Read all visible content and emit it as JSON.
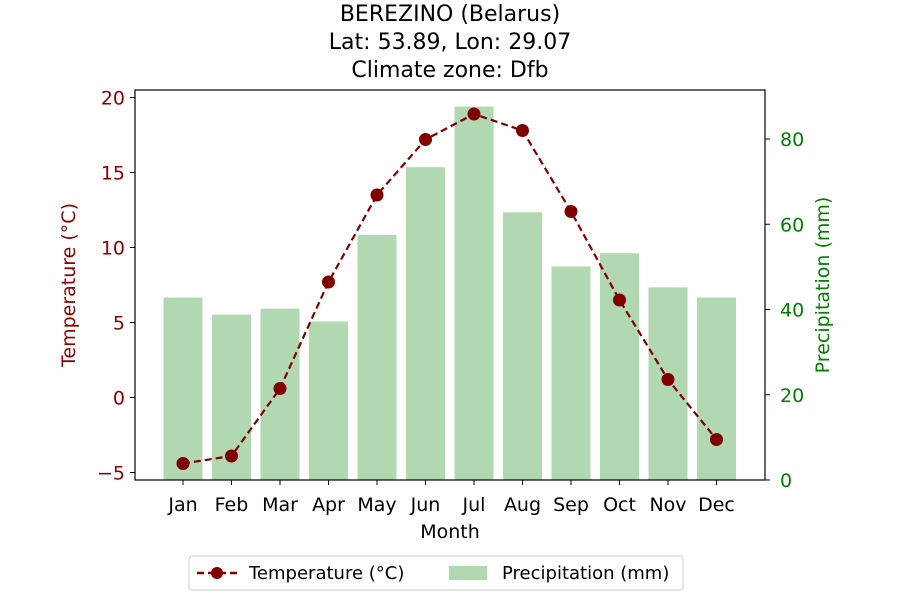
{
  "chart_data": {
    "type": "bar+line",
    "title_lines": [
      "BEREZINO (Belarus)",
      "Lat: 53.89, Lon: 29.07",
      "Climate zone: Dfb"
    ],
    "categories": [
      "Jan",
      "Feb",
      "Mar",
      "Apr",
      "May",
      "Jun",
      "Jul",
      "Aug",
      "Sep",
      "Oct",
      "Nov",
      "Dec"
    ],
    "xlabel": "Month",
    "y_left": {
      "label": "Temperature (°C)",
      "range": [
        -5.5,
        20.5
      ],
      "ticks": [
        -5,
        0,
        5,
        10,
        15,
        20
      ],
      "tick_labels": [
        "−5",
        "0",
        "5",
        "10",
        "15",
        "20"
      ],
      "color": "#8b0000"
    },
    "y_right": {
      "label": "Precipitation (mm)",
      "range": [
        0,
        91.5
      ],
      "ticks": [
        0,
        20,
        40,
        60,
        80
      ],
      "tick_labels": [
        "0",
        "20",
        "40",
        "60",
        "80"
      ],
      "color": "#008000"
    },
    "series": [
      {
        "name": "Temperature (°C)",
        "type": "line",
        "axis": "left",
        "color": "#800000",
        "values": [
          -4.4,
          -3.9,
          0.6,
          7.7,
          13.5,
          17.2,
          18.9,
          17.8,
          12.4,
          6.5,
          1.2,
          -2.8
        ]
      },
      {
        "name": "Precipitation (mm)",
        "type": "bar",
        "axis": "right",
        "color": "#b2d8b2",
        "values": [
          42.8,
          38.8,
          40.2,
          37.2,
          57.5,
          73.4,
          87.6,
          62.8,
          50.1,
          53.2,
          45.2,
          42.8
        ]
      }
    ],
    "legend_position": "bottom-center",
    "grid": false
  }
}
